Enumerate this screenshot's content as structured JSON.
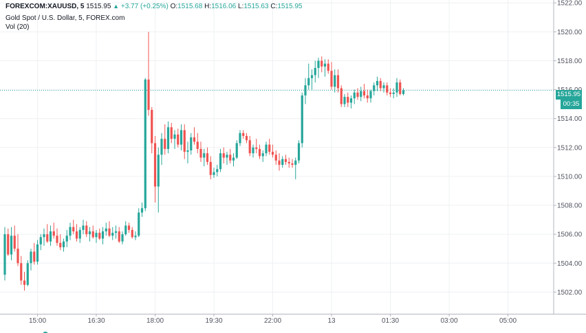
{
  "legend": {
    "symbol": "FOREXCOM:XAUUSD, 5",
    "last": "1515.95",
    "change": "+3.77 (+0.25%)",
    "o_label": "O:",
    "o_value": "1515.68",
    "h_label": "H:",
    "h_value": "1516.06",
    "l_label": "L:",
    "l_value": "1515.63",
    "c_label": "C:",
    "c_value": "1515.95",
    "title": "Gold Spot / U.S. Dollar, 5, FOREX.com",
    "volume": "Vol (20)"
  },
  "price_tag": "1515.95",
  "time_tag": "00:35",
  "colors": {
    "up": "#26a69a",
    "down": "#ef5350",
    "grid": "#eef0f3",
    "axis": "#50535e"
  },
  "chart_data": {
    "type": "candlestick",
    "y_ticks": [
      "1502.00",
      "1504.00",
      "1506.00",
      "1508.00",
      "1510.00",
      "1512.00",
      "1514.00",
      "1516.00",
      "1518.00",
      "1520.00",
      "1522.00"
    ],
    "x_ticks": [
      {
        "label": "15:00",
        "index": 10
      },
      {
        "label": "16:30",
        "index": 28
      },
      {
        "label": "18:00",
        "index": 46
      },
      {
        "label": "19:30",
        "index": 64
      },
      {
        "label": "22:00",
        "index": 82
      },
      {
        "label": "13",
        "index": 100
      },
      {
        "label": "01:30",
        "index": 118
      },
      {
        "label": "03:00",
        "index": 136
      },
      {
        "label": "05:00",
        "index": 154
      }
    ],
    "y_range": [
      1500.5,
      1522.2
    ],
    "last_close": 1515.95,
    "ohlc": [
      [
        1503.2,
        1506.5,
        1502.8,
        1506.0
      ],
      [
        1506.0,
        1506.4,
        1504.5,
        1504.6
      ],
      [
        1504.6,
        1506.5,
        1504.2,
        1505.9
      ],
      [
        1505.9,
        1506.6,
        1504.8,
        1505.0
      ],
      [
        1505.0,
        1506.0,
        1503.8,
        1504.0
      ],
      [
        1504.0,
        1504.5,
        1502.5,
        1502.8
      ],
      [
        1502.8,
        1503.4,
        1502.1,
        1502.5
      ],
      [
        1502.5,
        1504.2,
        1502.4,
        1504.0
      ],
      [
        1504.0,
        1505.0,
        1503.5,
        1504.8
      ],
      [
        1504.8,
        1505.4,
        1503.9,
        1504.1
      ],
      [
        1504.1,
        1505.6,
        1503.9,
        1505.3
      ],
      [
        1505.3,
        1506.0,
        1504.9,
        1505.8
      ],
      [
        1505.8,
        1506.4,
        1505.2,
        1506.0
      ],
      [
        1506.0,
        1506.7,
        1505.4,
        1505.5
      ],
      [
        1505.5,
        1506.6,
        1505.2,
        1506.2
      ],
      [
        1506.2,
        1506.8,
        1505.7,
        1505.9
      ],
      [
        1505.9,
        1506.4,
        1505.2,
        1505.4
      ],
      [
        1505.4,
        1506.0,
        1504.9,
        1505.1
      ],
      [
        1505.1,
        1505.7,
        1504.8,
        1505.5
      ],
      [
        1505.5,
        1506.3,
        1505.1,
        1505.9
      ],
      [
        1505.9,
        1506.8,
        1505.6,
        1506.5
      ],
      [
        1506.5,
        1507.0,
        1506.0,
        1506.2
      ],
      [
        1506.2,
        1506.7,
        1505.5,
        1505.7
      ],
      [
        1505.7,
        1506.5,
        1505.4,
        1506.3
      ],
      [
        1506.3,
        1507.0,
        1506.0,
        1506.6
      ],
      [
        1506.6,
        1506.9,
        1505.8,
        1506.0
      ],
      [
        1506.0,
        1506.5,
        1505.5,
        1506.2
      ],
      [
        1506.2,
        1506.6,
        1505.7,
        1505.8
      ],
      [
        1505.8,
        1506.3,
        1505.4,
        1506.1
      ],
      [
        1506.1,
        1506.4,
        1505.6,
        1505.7
      ],
      [
        1505.7,
        1506.5,
        1505.3,
        1506.2
      ],
      [
        1506.2,
        1506.8,
        1505.9,
        1506.4
      ],
      [
        1506.4,
        1506.9,
        1505.8,
        1505.9
      ],
      [
        1505.9,
        1506.5,
        1505.6,
        1506.1
      ],
      [
        1506.1,
        1506.6,
        1505.7,
        1506.2
      ],
      [
        1506.2,
        1506.5,
        1505.4,
        1505.5
      ],
      [
        1505.5,
        1506.2,
        1505.3,
        1506.0
      ],
      [
        1506.0,
        1506.9,
        1505.9,
        1506.6
      ],
      [
        1506.6,
        1506.8,
        1506.1,
        1506.3
      ],
      [
        1506.3,
        1506.5,
        1505.7,
        1505.8
      ],
      [
        1505.8,
        1506.2,
        1505.6,
        1505.9
      ],
      [
        1505.9,
        1507.8,
        1505.8,
        1507.5
      ],
      [
        1507.5,
        1508.2,
        1507.2,
        1507.8
      ],
      [
        1507.8,
        1516.8,
        1507.6,
        1516.7
      ],
      [
        1516.7,
        1520.0,
        1514.2,
        1514.6
      ],
      [
        1514.6,
        1514.8,
        1511.6,
        1512.3
      ],
      [
        1512.3,
        1512.8,
        1508.2,
        1509.3
      ],
      [
        1509.3,
        1512.0,
        1507.5,
        1511.5
      ],
      [
        1511.5,
        1513.0,
        1510.8,
        1512.6
      ],
      [
        1512.6,
        1513.6,
        1511.5,
        1511.9
      ],
      [
        1511.9,
        1513.8,
        1511.6,
        1513.4
      ],
      [
        1513.4,
        1513.7,
        1512.3,
        1512.6
      ],
      [
        1512.6,
        1513.2,
        1511.9,
        1512.9
      ],
      [
        1512.9,
        1513.3,
        1512.0,
        1512.2
      ],
      [
        1512.2,
        1513.6,
        1511.8,
        1513.2
      ],
      [
        1513.2,
        1513.6,
        1511.2,
        1511.7
      ],
      [
        1511.7,
        1512.4,
        1510.9,
        1511.8
      ],
      [
        1511.8,
        1513.0,
        1511.5,
        1512.7
      ],
      [
        1512.7,
        1513.4,
        1512.2,
        1512.4
      ],
      [
        1512.4,
        1513.0,
        1511.6,
        1511.9
      ],
      [
        1511.9,
        1512.4,
        1511.0,
        1511.3
      ],
      [
        1511.3,
        1511.9,
        1510.7,
        1511.6
      ],
      [
        1511.6,
        1512.0,
        1510.8,
        1511.0
      ],
      [
        1511.0,
        1511.4,
        1509.8,
        1510.1
      ],
      [
        1510.1,
        1510.6,
        1509.9,
        1510.3
      ],
      [
        1510.3,
        1510.8,
        1510.0,
        1510.5
      ],
      [
        1510.5,
        1511.9,
        1510.3,
        1511.6
      ],
      [
        1511.6,
        1512.0,
        1510.9,
        1511.3
      ],
      [
        1511.3,
        1511.7,
        1510.8,
        1511.5
      ],
      [
        1511.5,
        1511.9,
        1510.9,
        1511.1
      ],
      [
        1511.1,
        1511.6,
        1510.7,
        1511.3
      ],
      [
        1511.3,
        1512.5,
        1511.2,
        1512.3
      ],
      [
        1512.3,
        1513.2,
        1512.1,
        1513.0
      ],
      [
        1513.0,
        1513.2,
        1512.6,
        1512.8
      ],
      [
        1512.8,
        1513.0,
        1512.3,
        1512.5
      ],
      [
        1512.5,
        1512.8,
        1511.4,
        1511.6
      ],
      [
        1511.6,
        1512.2,
        1511.3,
        1512.0
      ],
      [
        1512.0,
        1512.6,
        1511.6,
        1511.9
      ],
      [
        1511.9,
        1512.2,
        1511.2,
        1511.4
      ],
      [
        1511.4,
        1511.8,
        1511.0,
        1511.6
      ],
      [
        1511.6,
        1512.4,
        1511.4,
        1512.2
      ],
      [
        1512.2,
        1512.6,
        1511.5,
        1511.7
      ],
      [
        1511.7,
        1512.2,
        1511.3,
        1511.5
      ],
      [
        1511.5,
        1511.8,
        1510.8,
        1511.1
      ],
      [
        1511.1,
        1511.6,
        1510.4,
        1510.8
      ],
      [
        1510.8,
        1511.4,
        1510.6,
        1511.2
      ],
      [
        1511.2,
        1511.5,
        1510.8,
        1511.0
      ],
      [
        1511.0,
        1511.3,
        1510.6,
        1510.9
      ],
      [
        1510.9,
        1511.2,
        1510.6,
        1510.8
      ],
      [
        1510.8,
        1511.3,
        1509.8,
        1511.1
      ],
      [
        1511.1,
        1512.5,
        1510.9,
        1512.3
      ],
      [
        1512.3,
        1515.8,
        1512.0,
        1515.6
      ],
      [
        1515.6,
        1516.8,
        1515.0,
        1516.3
      ],
      [
        1516.3,
        1517.8,
        1516.0,
        1516.8
      ],
      [
        1516.8,
        1517.4,
        1516.0,
        1517.0
      ],
      [
        1517.0,
        1518.0,
        1516.5,
        1517.5
      ],
      [
        1517.5,
        1518.2,
        1516.8,
        1518.0
      ],
      [
        1518.0,
        1518.3,
        1517.2,
        1517.6
      ],
      [
        1517.6,
        1518.1,
        1516.9,
        1517.8
      ],
      [
        1517.8,
        1518.1,
        1517.1,
        1517.3
      ],
      [
        1517.3,
        1517.9,
        1516.0,
        1516.2
      ],
      [
        1516.2,
        1517.4,
        1515.8,
        1517.0
      ],
      [
        1517.0,
        1517.4,
        1515.8,
        1516.1
      ],
      [
        1516.1,
        1516.3,
        1514.8,
        1515.0
      ],
      [
        1515.0,
        1515.7,
        1514.8,
        1515.5
      ],
      [
        1515.5,
        1515.8,
        1514.8,
        1515.1
      ],
      [
        1515.1,
        1515.6,
        1514.7,
        1515.4
      ],
      [
        1515.4,
        1516.0,
        1515.0,
        1515.8
      ],
      [
        1515.8,
        1516.1,
        1515.3,
        1515.5
      ],
      [
        1515.5,
        1516.2,
        1515.2,
        1515.9
      ],
      [
        1515.9,
        1516.4,
        1515.4,
        1515.6
      ],
      [
        1515.6,
        1516.0,
        1515.1,
        1515.4
      ],
      [
        1515.4,
        1516.0,
        1515.1,
        1515.9
      ],
      [
        1515.9,
        1516.5,
        1515.6,
        1516.3
      ],
      [
        1516.3,
        1516.9,
        1515.9,
        1516.6
      ],
      [
        1516.6,
        1516.8,
        1515.9,
        1516.1
      ],
      [
        1516.1,
        1516.5,
        1515.8,
        1516.3
      ],
      [
        1516.3,
        1516.5,
        1515.6,
        1515.8
      ],
      [
        1515.8,
        1516.1,
        1515.5,
        1515.7
      ],
      [
        1515.7,
        1516.1,
        1515.4,
        1515.8
      ],
      [
        1515.8,
        1516.8,
        1515.5,
        1516.5
      ],
      [
        1516.5,
        1516.7,
        1515.6,
        1515.7
      ],
      [
        1515.7,
        1516.1,
        1515.6,
        1515.95
      ]
    ]
  }
}
